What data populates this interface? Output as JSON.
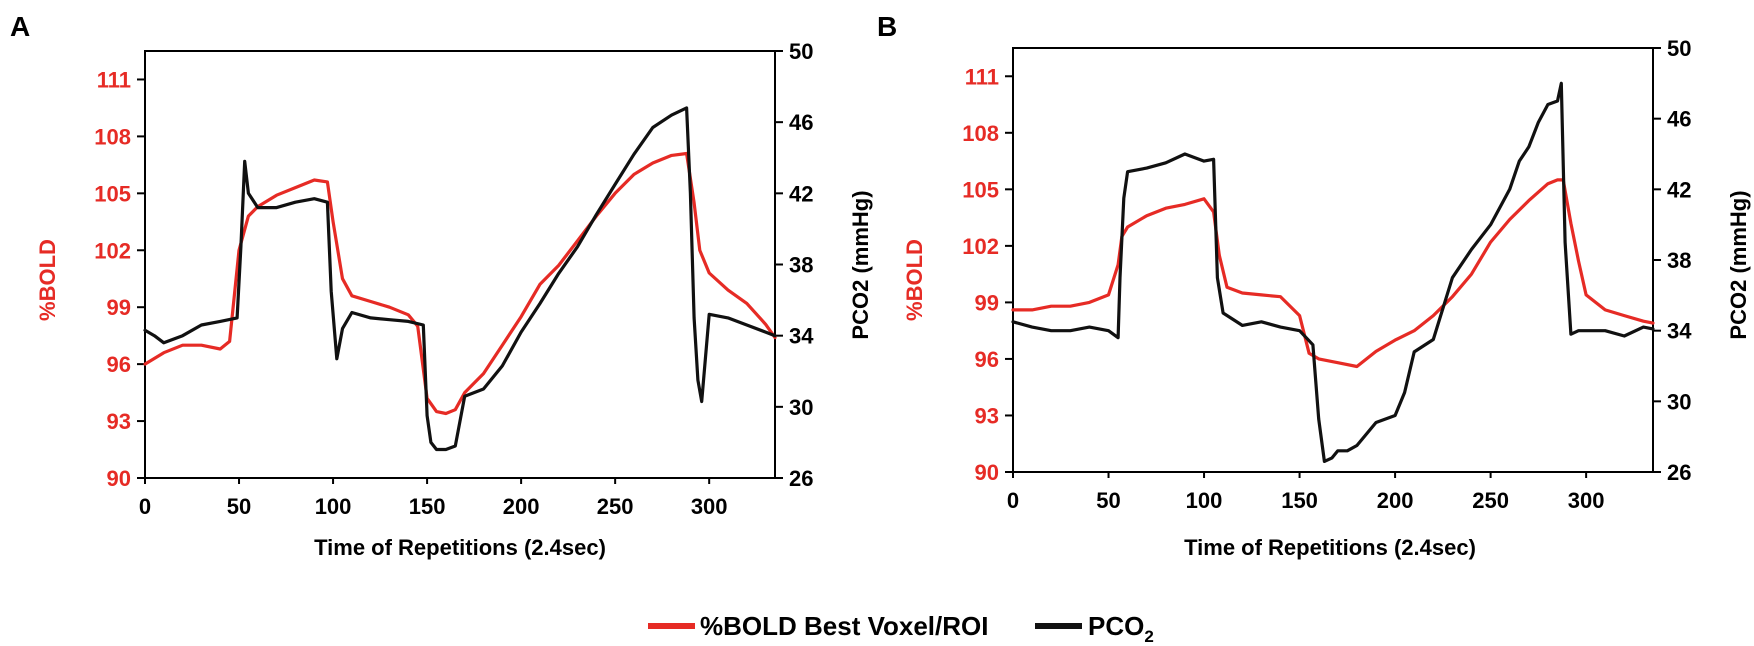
{
  "colors": {
    "bold": "#e62b25",
    "pco2": "#111111",
    "axis": "#000000"
  },
  "legend": {
    "items": [
      {
        "label": "%BOLD Best Voxel/ROI",
        "color": "#e62b25"
      },
      {
        "label": "PCO",
        "subscript": "2",
        "color": "#111111"
      }
    ]
  },
  "chart_data": [
    {
      "panel": "A",
      "type": "line",
      "xlabel": "Time of Repetitions (2.4sec)",
      "ylabel_left": "%BOLD",
      "ylabel_right": "PCO2 (mmHg)",
      "xlim": [
        0,
        335
      ],
      "ylim_left": [
        90,
        112.5
      ],
      "ylim_right": [
        26,
        50
      ],
      "xticks": [
        0,
        50,
        100,
        150,
        200,
        250,
        300
      ],
      "yticks_left": [
        90,
        93,
        96,
        99,
        102,
        105,
        108,
        111
      ],
      "yticks_right": [
        26,
        30,
        34,
        38,
        42,
        46,
        50
      ],
      "series": [
        {
          "name": "%BOLD Best Voxel/ROI",
          "axis": "left",
          "color": "#e62b25",
          "x": [
            0,
            10,
            20,
            30,
            40,
            45,
            50,
            55,
            60,
            70,
            80,
            90,
            97,
            100,
            105,
            110,
            120,
            130,
            140,
            145,
            150,
            155,
            160,
            165,
            170,
            180,
            190,
            200,
            210,
            220,
            230,
            240,
            250,
            260,
            270,
            280,
            288,
            292,
            295,
            300,
            310,
            320,
            330,
            335
          ],
          "y": [
            96.0,
            96.6,
            97.0,
            97.0,
            96.8,
            97.2,
            102.0,
            103.8,
            104.3,
            104.9,
            105.3,
            105.7,
            105.6,
            103.5,
            100.5,
            99.6,
            99.3,
            99.0,
            98.6,
            98.0,
            94.2,
            93.5,
            93.4,
            93.6,
            94.5,
            95.5,
            97.0,
            98.5,
            100.2,
            101.2,
            102.5,
            103.8,
            105.0,
            106.0,
            106.6,
            107.0,
            107.1,
            104.5,
            102.0,
            100.8,
            99.9,
            99.2,
            98.1,
            97.4
          ]
        },
        {
          "name": "PCO2",
          "axis": "right",
          "color": "#111111",
          "x": [
            0,
            5,
            10,
            20,
            30,
            40,
            49,
            51,
            53,
            55,
            60,
            70,
            80,
            90,
            97,
            99,
            102,
            105,
            110,
            120,
            130,
            140,
            148,
            150,
            152,
            155,
            160,
            165,
            170,
            175,
            180,
            190,
            200,
            210,
            220,
            230,
            240,
            250,
            260,
            270,
            280,
            286,
            288,
            290,
            292,
            294,
            296,
            300,
            310,
            320,
            330,
            335
          ],
          "y": [
            34.3,
            34.0,
            33.6,
            34.0,
            34.6,
            34.8,
            35.0,
            39.0,
            43.8,
            42.0,
            41.2,
            41.2,
            41.5,
            41.7,
            41.5,
            36.5,
            32.7,
            34.4,
            35.3,
            35.0,
            34.9,
            34.8,
            34.6,
            29.5,
            28.0,
            27.6,
            27.6,
            27.8,
            30.6,
            30.8,
            31.0,
            32.3,
            34.2,
            35.8,
            37.5,
            39.0,
            40.8,
            42.5,
            44.2,
            45.7,
            46.4,
            46.7,
            46.8,
            42.0,
            35.0,
            31.5,
            30.3,
            35.2,
            35.0,
            34.6,
            34.2,
            34.0
          ]
        }
      ]
    },
    {
      "panel": "B",
      "type": "line",
      "xlabel": "Time of Repetitions (2.4sec)",
      "ylabel_left": "%BOLD",
      "ylabel_right": "PCO2 (mmHg)",
      "xlim": [
        0,
        335
      ],
      "ylim_left": [
        90,
        112.5
      ],
      "ylim_right": [
        26,
        50
      ],
      "xticks": [
        0,
        50,
        100,
        150,
        200,
        250,
        300
      ],
      "yticks_left": [
        90,
        93,
        96,
        99,
        102,
        105,
        108,
        111
      ],
      "yticks_right": [
        26,
        30,
        34,
        38,
        42,
        46,
        50
      ],
      "series": [
        {
          "name": "%BOLD Best Voxel/ROI",
          "axis": "left",
          "color": "#e62b25",
          "x": [
            0,
            10,
            20,
            30,
            40,
            50,
            55,
            57,
            60,
            70,
            80,
            90,
            100,
            105,
            108,
            112,
            120,
            130,
            140,
            150,
            155,
            160,
            170,
            180,
            190,
            200,
            210,
            220,
            230,
            240,
            250,
            260,
            270,
            280,
            285,
            288,
            292,
            296,
            300,
            310,
            320,
            330,
            335
          ],
          "y": [
            98.6,
            98.6,
            98.8,
            98.8,
            99.0,
            99.4,
            101.0,
            102.5,
            103.0,
            103.6,
            104.0,
            104.2,
            104.5,
            103.8,
            101.5,
            99.8,
            99.5,
            99.4,
            99.3,
            98.3,
            96.3,
            96.0,
            95.8,
            95.6,
            96.4,
            97.0,
            97.5,
            98.3,
            99.3,
            100.5,
            102.2,
            103.4,
            104.4,
            105.3,
            105.5,
            105.5,
            103.2,
            101.2,
            99.4,
            98.6,
            98.3,
            98.0,
            97.9
          ]
        },
        {
          "name": "PCO2",
          "axis": "right",
          "color": "#111111",
          "x": [
            0,
            10,
            20,
            30,
            40,
            50,
            55,
            56,
            58,
            60,
            70,
            80,
            90,
            100,
            105,
            107,
            110,
            120,
            130,
            140,
            150,
            157,
            160,
            163,
            167,
            170,
            175,
            180,
            190,
            200,
            205,
            210,
            220,
            230,
            240,
            250,
            260,
            265,
            270,
            275,
            280,
            285,
            287,
            289,
            292,
            296,
            300,
            310,
            320,
            330,
            335
          ],
          "y": [
            34.5,
            34.2,
            34.0,
            34.0,
            34.2,
            34.0,
            33.6,
            37.0,
            41.5,
            43.0,
            43.2,
            43.5,
            44.0,
            43.6,
            43.7,
            37.0,
            35.0,
            34.3,
            34.5,
            34.2,
            34.0,
            33.2,
            29.0,
            26.6,
            26.8,
            27.2,
            27.2,
            27.5,
            28.8,
            29.2,
            30.5,
            32.8,
            33.5,
            37.0,
            38.6,
            40.0,
            42.0,
            43.6,
            44.4,
            45.8,
            46.8,
            47.0,
            48.0,
            39.0,
            33.8,
            34.0,
            34.0,
            34.0,
            33.7,
            34.2,
            34.1
          ]
        }
      ]
    }
  ]
}
